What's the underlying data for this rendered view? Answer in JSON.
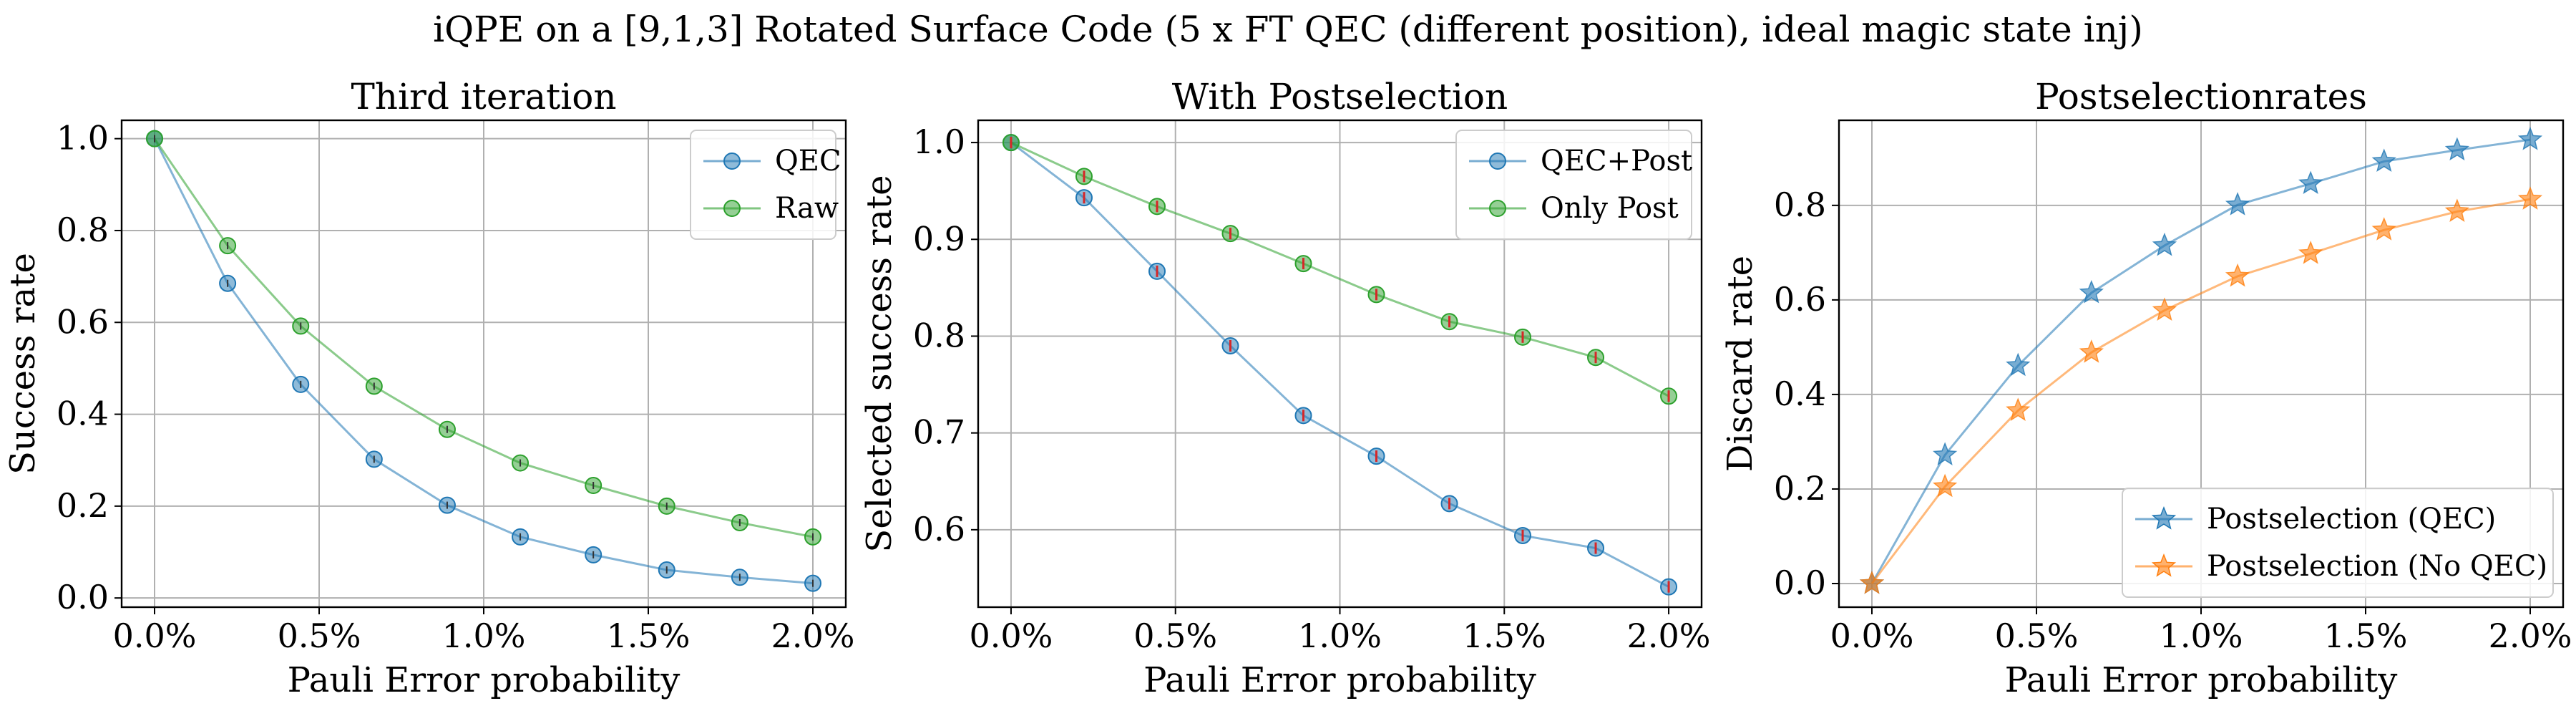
{
  "figure": {
    "suptitle": "iQPE on a [9,1,3] Rotated Surface Code (5 x FT QEC (different position), ideal magic state inj)"
  },
  "colors": {
    "blue": "#1f77b4",
    "green": "#2ca02c",
    "orange": "#ff7f0e",
    "red_marker": "#d62728",
    "grid": "#b0b0b0"
  },
  "chart_data": [
    {
      "type": "line",
      "title": "Third iteration",
      "xlabel": "Pauli Error probability",
      "ylabel": "Success rate",
      "x": [
        0.0,
        0.222,
        0.444,
        0.667,
        0.889,
        1.111,
        1.333,
        1.556,
        1.778,
        2.0
      ],
      "x_ticks": [
        "0.0%",
        "0.5%",
        "1.0%",
        "1.5%",
        "2.0%"
      ],
      "y_ticks": [
        "0.0",
        "0.2",
        "0.4",
        "0.6",
        "0.8",
        "1.0"
      ],
      "ylim": [
        -0.02,
        1.04
      ],
      "grid": true,
      "legend_position": "top-right",
      "series": [
        {
          "name": "QEC",
          "color": "#1f77b4",
          "marker": "circle",
          "values": [
            1.0,
            0.685,
            0.465,
            0.302,
            0.202,
            0.133,
            0.094,
            0.061,
            0.045,
            0.032
          ]
        },
        {
          "name": "Raw",
          "color": "#2ca02c",
          "marker": "circle",
          "values": [
            1.0,
            0.767,
            0.592,
            0.461,
            0.367,
            0.294,
            0.245,
            0.2,
            0.164,
            0.133
          ]
        }
      ]
    },
    {
      "type": "line",
      "title": "With Postselection",
      "xlabel": "Pauli Error probability",
      "ylabel": "Selected success rate",
      "x": [
        0.0,
        0.222,
        0.444,
        0.667,
        0.889,
        1.111,
        1.333,
        1.556,
        1.778,
        2.0
      ],
      "x_ticks": [
        "0.0%",
        "0.5%",
        "1.0%",
        "1.5%",
        "2.0%"
      ],
      "y_ticks": [
        "0.6",
        "0.7",
        "0.8",
        "0.9",
        "1.0"
      ],
      "ylim": [
        0.52,
        1.023
      ],
      "grid": true,
      "legend_position": "top-right",
      "error_bar_color": "#d62728",
      "series": [
        {
          "name": "QEC+Post",
          "color": "#1f77b4",
          "marker": "circle",
          "values": [
            1.0,
            0.943,
            0.867,
            0.79,
            0.718,
            0.676,
            0.627,
            0.594,
            0.581,
            0.541
          ]
        },
        {
          "name": "Only Post",
          "color": "#2ca02c",
          "marker": "circle",
          "values": [
            1.0,
            0.965,
            0.934,
            0.906,
            0.875,
            0.843,
            0.815,
            0.799,
            0.778,
            0.738
          ]
        }
      ]
    },
    {
      "type": "line",
      "title": "Postselectionrates",
      "xlabel": "Pauli Error probability",
      "ylabel": "Discard rate",
      "x": [
        0.0,
        0.222,
        0.444,
        0.667,
        0.889,
        1.111,
        1.333,
        1.556,
        1.778,
        2.0
      ],
      "x_ticks": [
        "0.0%",
        "0.5%",
        "1.0%",
        "1.5%",
        "2.0%"
      ],
      "y_ticks": [
        "0.0",
        "0.2",
        "0.4",
        "0.6",
        "0.8"
      ],
      "ylim": [
        -0.05,
        0.98
      ],
      "grid": true,
      "legend_position": "bottom-right",
      "series": [
        {
          "name": "Postselection (QEC)",
          "color": "#1f77b4",
          "marker": "star",
          "values": [
            0.0,
            0.272,
            0.461,
            0.615,
            0.715,
            0.801,
            0.846,
            0.893,
            0.917,
            0.939
          ]
        },
        {
          "name": "Postselection (No QEC)",
          "color": "#ff7f0e",
          "marker": "star",
          "values": [
            0.0,
            0.205,
            0.366,
            0.489,
            0.578,
            0.65,
            0.698,
            0.748,
            0.787,
            0.813
          ]
        }
      ]
    }
  ]
}
